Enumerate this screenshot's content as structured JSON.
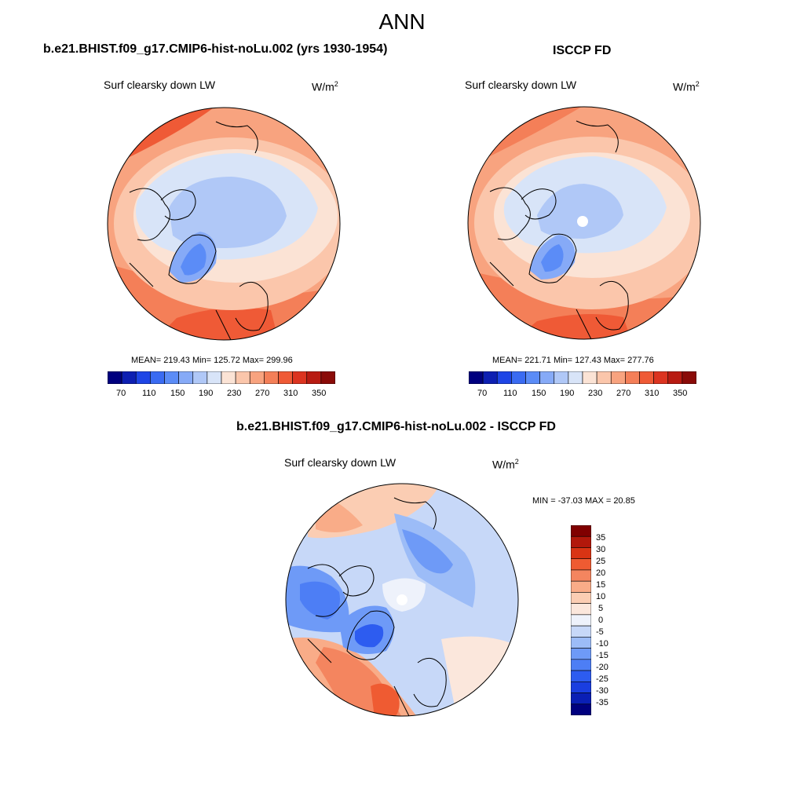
{
  "season": "ANN",
  "colors": {
    "abs_scale": [
      "#00007f",
      "#0d1fb2",
      "#1e45e6",
      "#3a6bf2",
      "#5b8cf7",
      "#86aaf7",
      "#b0c8f7",
      "#d8e4f8",
      "#fbe3d5",
      "#fbc6ab",
      "#f8a37f",
      "#f47f58",
      "#ef5a36",
      "#dc3420",
      "#b81b12",
      "#8a0b08"
    ],
    "diff_scale": [
      "#00007f",
      "#0a1fb5",
      "#1a3ee0",
      "#2d5cf0",
      "#4d7ef5",
      "#6e9af7",
      "#9cbcf7",
      "#c7d8f8",
      "#eef2fb",
      "#fbe7dc",
      "#fbcdb3",
      "#f9ac88",
      "#f4855f",
      "#ef5b32",
      "#d93414",
      "#b2180b",
      "#800000"
    ]
  },
  "panels": {
    "model": {
      "heading": "b.e21.BHIST.f09_g17.CMIP6-hist-noLu.002 (yrs 1930-1954)",
      "variable": "Surf clearsky down LW",
      "units_base": "W/m",
      "units_exp": "2",
      "stats": "MEAN= 219.43  Min= 125.72  Max= 299.96"
    },
    "obs": {
      "heading": "ISCCP FD",
      "variable": "Surf clearsky down LW",
      "units_base": "W/m",
      "units_exp": "2",
      "stats": "MEAN= 221.71  Min= 127.43  Max= 277.76"
    },
    "diff": {
      "heading": "b.e21.BHIST.f09_g17.CMIP6-hist-noLu.002 - ISCCP FD",
      "variable": "Surf clearsky down LW",
      "units_base": "W/m",
      "units_exp": "2",
      "stats": "MIN = -37.03 MAX =  20.85"
    }
  },
  "abs_colorbar_labels": [
    "70",
    "110",
    "150",
    "190",
    "230",
    "270",
    "310",
    "350"
  ],
  "diff_colorbar_labels": [
    "35",
    "30",
    "25",
    "20",
    "15",
    "10",
    "5",
    "0",
    "-5",
    "-10",
    "-15",
    "-20",
    "-25",
    "-30",
    "-35"
  ]
}
